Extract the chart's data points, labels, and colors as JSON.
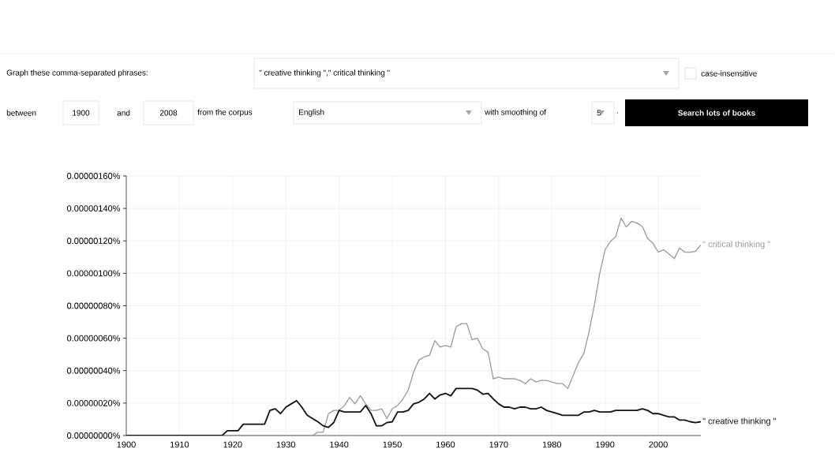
{
  "chart_data": {
    "type": "line",
    "annotations": [
      "Graph these comma-separated phrases:",
      "\" creative thinking \",\" critical thinking \"",
      "case-insensitive",
      "between",
      "1900",
      "and",
      "2008",
      "from the corpus",
      "English",
      "with smoothing of",
      "5",
      ".",
      "Search lots of books"
    ],
    "x": [
      1900,
      1901,
      1902,
      1903,
      1904,
      1905,
      1906,
      1907,
      1908,
      1909,
      1910,
      1911,
      1912,
      1913,
      1914,
      1915,
      1916,
      1917,
      1918,
      1919,
      1920,
      1921,
      1922,
      1923,
      1924,
      1925,
      1926,
      1927,
      1928,
      1929,
      1930,
      1931,
      1932,
      1933,
      1934,
      1935,
      1936,
      1937,
      1938,
      1939,
      1940,
      1941,
      1942,
      1943,
      1944,
      1945,
      1946,
      1947,
      1948,
      1949,
      1950,
      1951,
      1952,
      1953,
      1954,
      1955,
      1956,
      1957,
      1958,
      1959,
      1960,
      1961,
      1962,
      1963,
      1964,
      1965,
      1966,
      1967,
      1968,
      1969,
      1970,
      1971,
      1972,
      1973,
      1974,
      1975,
      1976,
      1977,
      1978,
      1979,
      1980,
      1981,
      1982,
      1983,
      1984,
      1985,
      1986,
      1987,
      1988,
      1989,
      1990,
      1991,
      1992,
      1993,
      1994,
      1995,
      1996,
      1997,
      1998,
      1999,
      2000,
      2001,
      2002,
      2003,
      2004,
      2005,
      2006,
      2007,
      2008
    ],
    "series": [
      {
        "name": "\" critical thinking \"",
        "color": "#999999",
        "values": [
          0,
          0,
          0,
          0,
          0,
          0,
          0,
          0,
          0,
          0,
          0,
          0,
          0,
          0,
          0,
          0,
          0,
          0,
          0,
          0,
          0,
          0,
          0,
          0,
          0,
          0,
          0,
          0,
          0,
          0,
          0,
          0,
          0,
          0,
          0,
          0,
          2e-08,
          2e-08,
          1.35e-07,
          1.55e-07,
          1.55e-07,
          1.85e-07,
          2.35e-07,
          1.95e-07,
          2.45e-07,
          1.95e-07,
          1.55e-07,
          1.55e-07,
          1.65e-07,
          1.05e-07,
          1.65e-07,
          1.85e-07,
          2.25e-07,
          2.8e-07,
          3.9e-07,
          4.65e-07,
          4.85e-07,
          4.95e-07,
          5.85e-07,
          5.45e-07,
          5.55e-07,
          5.45e-07,
          6.7e-07,
          6.9e-07,
          6.9e-07,
          5.9e-07,
          6e-07,
          5.35e-07,
          5.15e-07,
          3.5e-07,
          3.6e-07,
          3.5e-07,
          3.5e-07,
          3.5e-07,
          3.4e-07,
          3.2e-07,
          3.5e-07,
          3.3e-07,
          3.4e-07,
          3.4e-07,
          3.3e-07,
          3.2e-07,
          3.2e-07,
          2.9e-07,
          3.7e-07,
          4.5e-07,
          5.05e-07,
          6.4e-07,
          8.05e-07,
          1e-06,
          1.145e-06,
          1.195e-06,
          1.225e-06,
          1.34e-06,
          1.285e-06,
          1.32e-06,
          1.31e-06,
          1.29e-06,
          1.215e-06,
          1.185e-06,
          1.13e-06,
          1.145e-06,
          1.12e-06,
          1.09e-06,
          1.155e-06,
          1.13e-06,
          1.13e-06,
          1.135e-06,
          1.175e-06
        ]
      },
      {
        "name": "\" creative thinking \"",
        "color": "#111111",
        "values": [
          0,
          0,
          0,
          0,
          0,
          0,
          0,
          0,
          0,
          0,
          0,
          0,
          0,
          0,
          0,
          0,
          0,
          0,
          0,
          3e-08,
          3e-08,
          3e-08,
          7e-08,
          7e-08,
          7e-08,
          7e-08,
          7e-08,
          1.55e-07,
          1.65e-07,
          1.35e-07,
          1.75e-07,
          1.95e-07,
          2.15e-07,
          1.75e-07,
          1.25e-07,
          1.05e-07,
          8.5e-08,
          6e-08,
          5e-08,
          8e-08,
          1.55e-07,
          1.45e-07,
          1.45e-07,
          1.45e-07,
          1.45e-07,
          1.85e-07,
          1.35e-07,
          6e-08,
          6e-08,
          8e-08,
          8.5e-08,
          1.45e-07,
          1.45e-07,
          1.55e-07,
          1.95e-07,
          2.05e-07,
          2.25e-07,
          2.6e-07,
          2.25e-07,
          2.5e-07,
          2.6e-07,
          2.45e-07,
          2.9e-07,
          2.9e-07,
          2.9e-07,
          2.9e-07,
          2.8e-07,
          2.55e-07,
          2.6e-07,
          2.25e-07,
          1.95e-07,
          1.75e-07,
          1.75e-07,
          1.65e-07,
          1.75e-07,
          1.75e-07,
          1.65e-07,
          1.65e-07,
          1.75e-07,
          1.55e-07,
          1.45e-07,
          1.35e-07,
          1.25e-07,
          1.25e-07,
          1.25e-07,
          1.25e-07,
          1.45e-07,
          1.45e-07,
          1.55e-07,
          1.45e-07,
          1.45e-07,
          1.45e-07,
          1.55e-07,
          1.55e-07,
          1.55e-07,
          1.55e-07,
          1.55e-07,
          1.65e-07,
          1.55e-07,
          1.35e-07,
          1.35e-07,
          1.25e-07,
          1.15e-07,
          1.15e-07,
          9.5e-08,
          9.5e-08,
          8.5e-08,
          8e-08,
          8.5e-08
        ]
      }
    ],
    "xlim": [
      1900,
      2008
    ],
    "xticks": [
      1900,
      1910,
      1920,
      1930,
      1940,
      1950,
      1960,
      1970,
      1980,
      1990,
      2000
    ],
    "ylim": [
      0,
      1.6e-06
    ],
    "yticks": [
      {
        "value": 0,
        "label": "0.00000000%"
      },
      {
        "value": 2e-07,
        "label": "0.00000020%"
      },
      {
        "value": 4e-07,
        "label": "0.00000040%"
      },
      {
        "value": 6e-07,
        "label": "0.00000060%"
      },
      {
        "value": 8e-07,
        "label": "0.00000080%"
      },
      {
        "value": 1e-06,
        "label": "0.00000100%"
      },
      {
        "value": 1.2e-06,
        "label": "0.00000120%"
      },
      {
        "value": 1.4e-06,
        "label": "0.00000140%"
      },
      {
        "value": 1.6e-06,
        "label": "0.00000160%"
      }
    ],
    "grid": true,
    "legend": false,
    "marker": "none",
    "line_style": "solid"
  }
}
